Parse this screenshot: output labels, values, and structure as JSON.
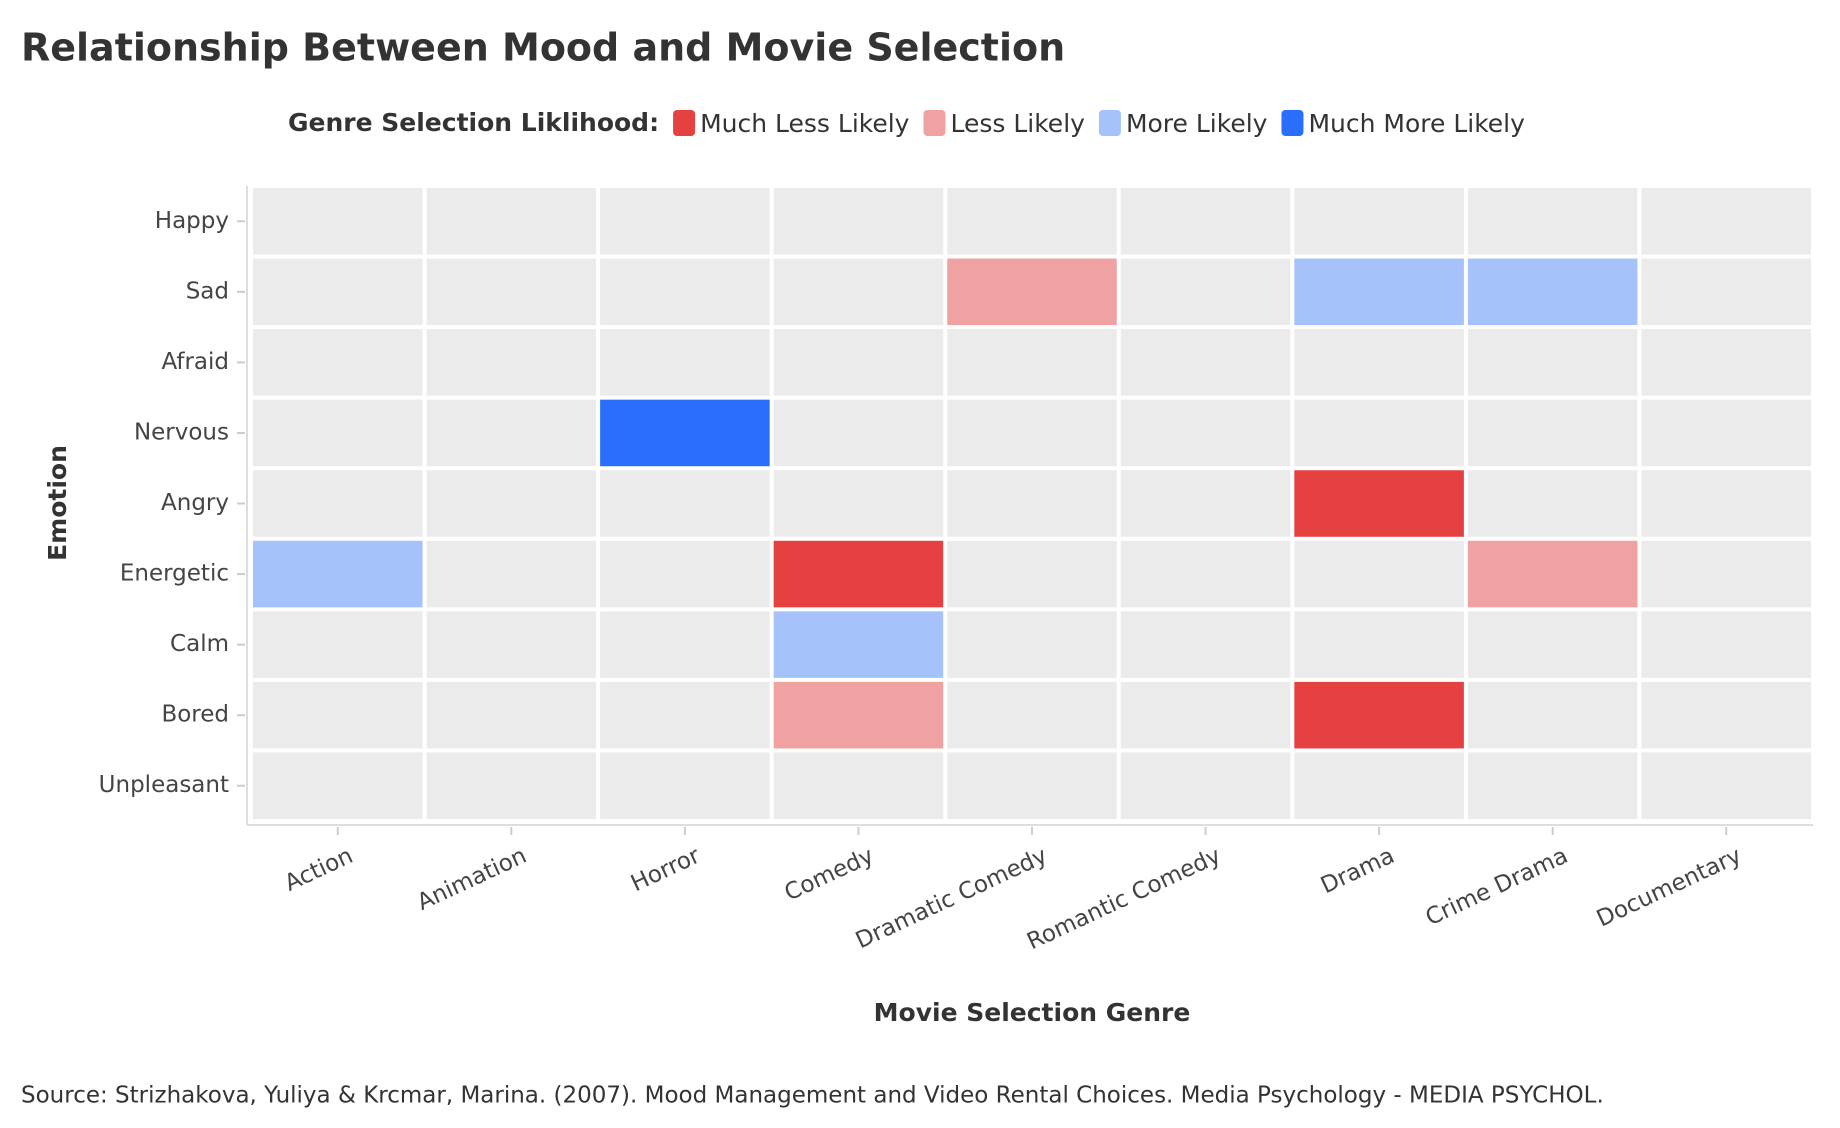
{
  "chart_data": {
    "type": "heatmap",
    "title": "Relationship Between Mood and Movie Selection",
    "legend_title": "Genre Selection Liklihood:",
    "series": [
      {
        "name": "Much Less Likely",
        "color": "#e64141"
      },
      {
        "name": "Less Likely",
        "color": "#f0a1a1"
      },
      {
        "name": "More Likely",
        "color": "#a5c2fb"
      },
      {
        "name": "Much More Likely",
        "color": "#296efc"
      }
    ],
    "x_label": "Movie Selection Genre",
    "y_label": "Emotion",
    "categories": [
      "Action",
      "Animation",
      "Horror",
      "Comedy",
      "Dramatic Comedy",
      "Romantic Comedy",
      "Drama",
      "Crime Drama",
      "Documentary"
    ],
    "rows": [
      "Happy",
      "Sad",
      "Afraid",
      "Nervous",
      "Angry",
      "Energetic",
      "Calm",
      "Bored",
      "Unpleasant"
    ],
    "values": [
      [
        null,
        null,
        null,
        null,
        null,
        null,
        null,
        null,
        null
      ],
      [
        null,
        null,
        null,
        null,
        "Less Likely",
        null,
        "More Likely",
        "More Likely",
        null
      ],
      [
        null,
        null,
        null,
        null,
        null,
        null,
        null,
        null,
        null
      ],
      [
        null,
        null,
        "Much More Likely",
        null,
        null,
        null,
        null,
        null,
        null
      ],
      [
        null,
        null,
        null,
        null,
        null,
        null,
        "Much Less Likely",
        null,
        null
      ],
      [
        "More Likely",
        null,
        null,
        "Much Less Likely",
        null,
        null,
        null,
        "Less Likely",
        null
      ],
      [
        null,
        null,
        null,
        "More Likely",
        null,
        null,
        null,
        null,
        null
      ],
      [
        null,
        null,
        null,
        "Less Likely",
        null,
        null,
        "Much Less Likely",
        null,
        null
      ],
      [
        null,
        null,
        null,
        null,
        null,
        null,
        null,
        null,
        null
      ]
    ],
    "source": "Source: Strizhakova, Yuliya & Krcmar, Marina. (2007). Mood Management and Video Rental Choices. Media Psychology - MEDIA PSYCHOL."
  }
}
